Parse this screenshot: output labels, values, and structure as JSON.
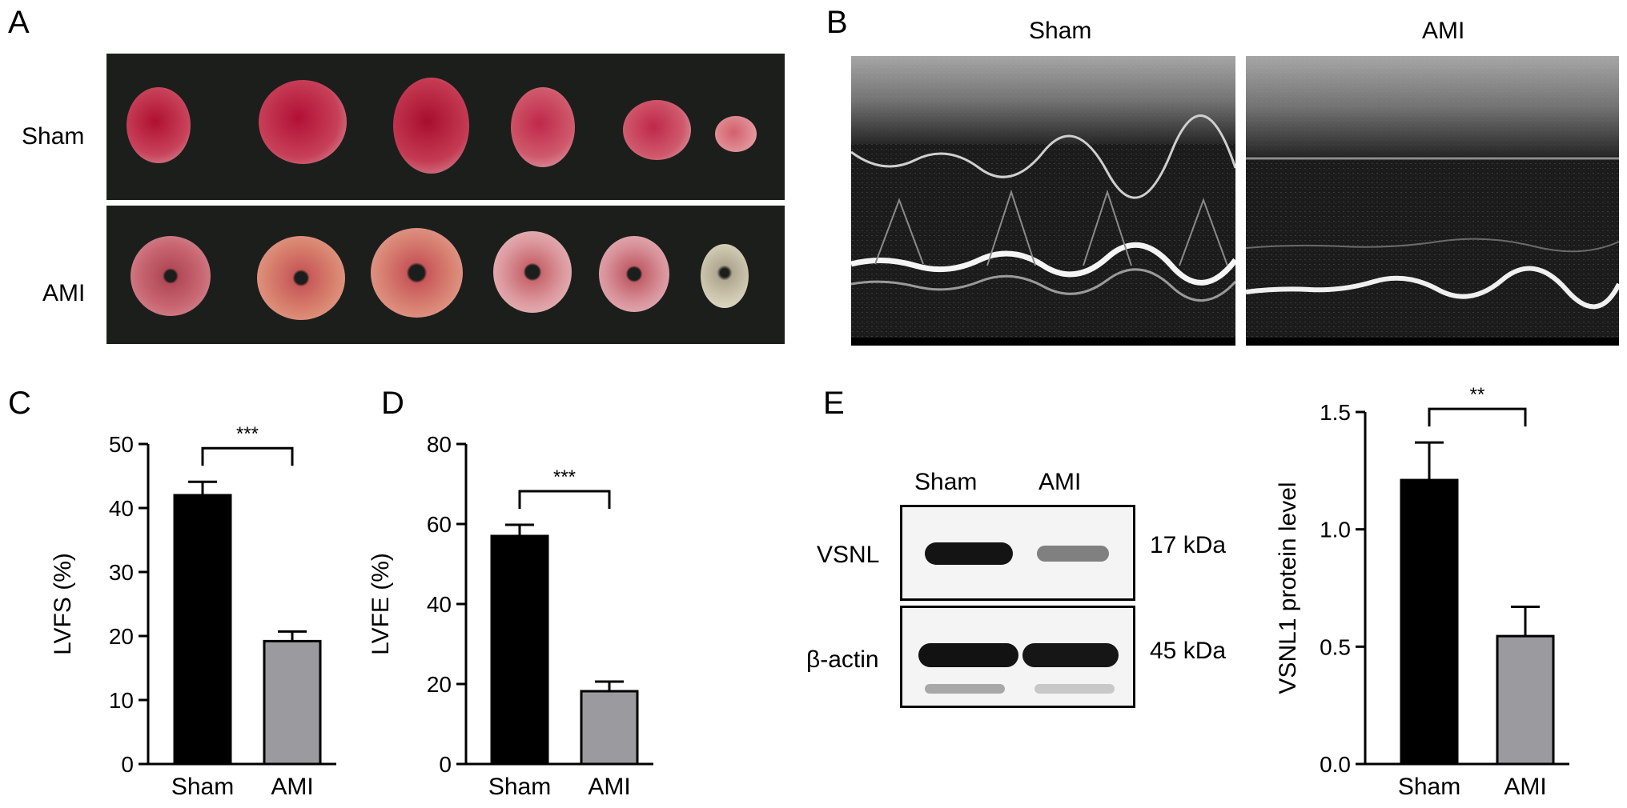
{
  "panels": {
    "A": {
      "letter": "A",
      "rows": [
        "Sham",
        "AMI"
      ],
      "hearts_per_row": 6
    },
    "B": {
      "letter": "B",
      "columns": [
        "Sham",
        "AMI"
      ]
    },
    "E_blot": {
      "lanes": [
        "Sham",
        "AMI"
      ],
      "bands": [
        {
          "label": "VSNL",
          "size": "17 kDa",
          "intensity": [
            1.0,
            0.45
          ]
        },
        {
          "label": "β-actin",
          "size": "45 kDa",
          "intensity": [
            1.0,
            1.0
          ]
        }
      ]
    }
  },
  "chart_data": [
    {
      "type": "bar",
      "panel": "C",
      "categories": [
        "Sham",
        "AMI"
      ],
      "values": [
        42,
        19.2
      ],
      "errors": [
        2.1,
        1.5
      ],
      "ylabel": "LVFS (%)",
      "ylim": [
        0,
        50
      ],
      "yticks": [
        "0",
        "10",
        "20",
        "30",
        "40",
        "50"
      ],
      "significance": "***",
      "colors": [
        "#000000",
        "#9a9a9f"
      ]
    },
    {
      "type": "bar",
      "panel": "D",
      "categories": [
        "Sham",
        "AMI"
      ],
      "values": [
        57,
        18.2
      ],
      "errors": [
        2.8,
        2.4
      ],
      "ylabel": "LVFE (%)",
      "ylim": [
        0,
        80
      ],
      "yticks": [
        "0",
        "20",
        "40",
        "60",
        "80"
      ],
      "significance": "***",
      "colors": [
        "#000000",
        "#9a9a9f"
      ]
    },
    {
      "type": "bar",
      "panel": "E",
      "categories": [
        "Sham",
        "AMI"
      ],
      "values": [
        1.21,
        0.545
      ],
      "errors": [
        0.16,
        0.125
      ],
      "ylabel": "VSNL1 protein level",
      "ylim": [
        0,
        1.5
      ],
      "yticks": [
        "0.0",
        "0.5",
        "1.0",
        "1.5"
      ],
      "significance": "**",
      "colors": [
        "#000000",
        "#9a9a9f"
      ]
    }
  ]
}
